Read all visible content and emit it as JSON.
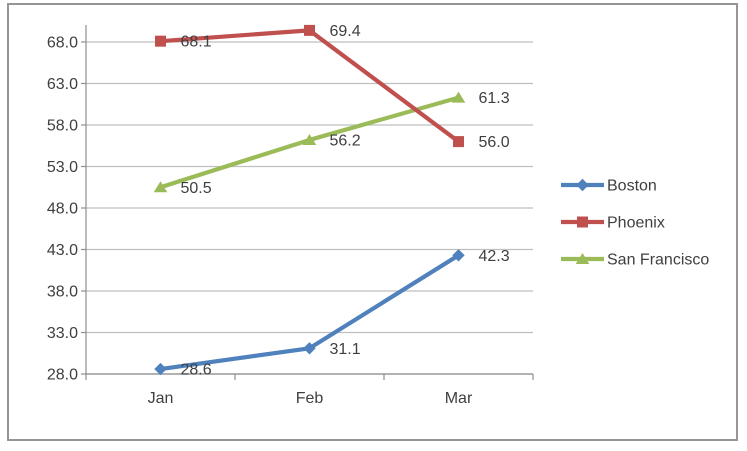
{
  "chart_data": {
    "type": "line",
    "title": "",
    "xlabel": "",
    "ylabel": "",
    "categories": [
      "Jan",
      "Feb",
      "Mar"
    ],
    "series": [
      {
        "name": "Boston",
        "values": [
          28.6,
          31.1,
          42.3
        ],
        "labels": [
          "28.6",
          "31.1",
          "42.3"
        ],
        "color": "#4F81BD",
        "marker": "diamond"
      },
      {
        "name": "Phoenix",
        "values": [
          68.1,
          69.4,
          56.0
        ],
        "labels": [
          "68.1",
          "69.4",
          "56.0"
        ],
        "color": "#C0504D",
        "marker": "square"
      },
      {
        "name": "San Francisco",
        "values": [
          50.5,
          56.2,
          61.3
        ],
        "labels": [
          "50.5",
          "56.2",
          "61.3"
        ],
        "color": "#9BBB59",
        "marker": "triangle"
      }
    ],
    "ylim": [
      28,
      68
    ],
    "ytick_step": 5,
    "ytick_labels": [
      "28.0",
      "33.0",
      "38.0",
      "43.0",
      "48.0",
      "53.0",
      "58.0",
      "63.0",
      "68.0"
    ],
    "grid": true,
    "data_labels_shown": true,
    "legend_position": "right",
    "legend": [
      "Boston",
      "Phoenix",
      "San Francisco"
    ]
  },
  "colors": {
    "background": "#FFFFFF",
    "frame_border": "#959595",
    "gridline": "#BFBFBF",
    "axis": "#8E8E8E",
    "text": "#3F3F3F"
  }
}
